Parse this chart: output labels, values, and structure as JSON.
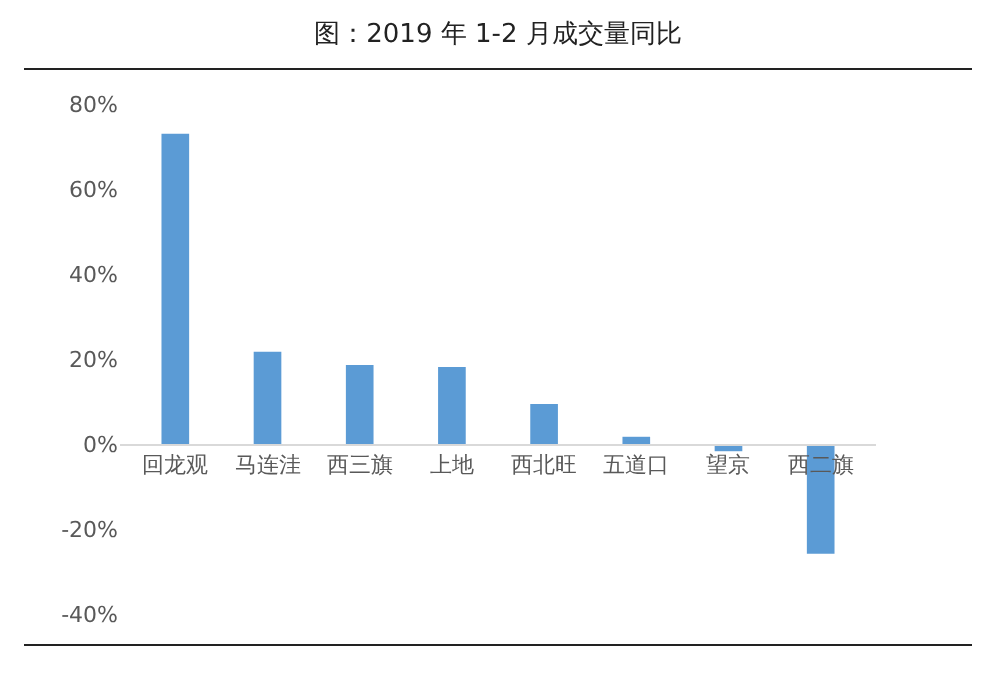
{
  "chart_data": {
    "type": "bar",
    "title": "图：2019 年 1-2 月成交量同比",
    "categories": [
      "回龙观",
      "马连洼",
      "西三旗",
      "上地",
      "西北旺",
      "五道口",
      "望京",
      "西二旗"
    ],
    "values": [
      73,
      21.7,
      18.6,
      18.1,
      9.4,
      1.7,
      -1.7,
      -25.8
    ],
    "color": "#5b9bd5",
    "ylim": [
      -40,
      80
    ],
    "yticks": [
      {
        "value": -40,
        "label": "-40%"
      },
      {
        "value": -20,
        "label": "-20%"
      },
      {
        "value": 0,
        "label": "0%"
      },
      {
        "value": 20,
        "label": "20%"
      },
      {
        "value": 40,
        "label": "40%"
      },
      {
        "value": 60,
        "label": "60%"
      },
      {
        "value": 80,
        "label": "80%"
      }
    ],
    "grid": false,
    "legend": false
  }
}
